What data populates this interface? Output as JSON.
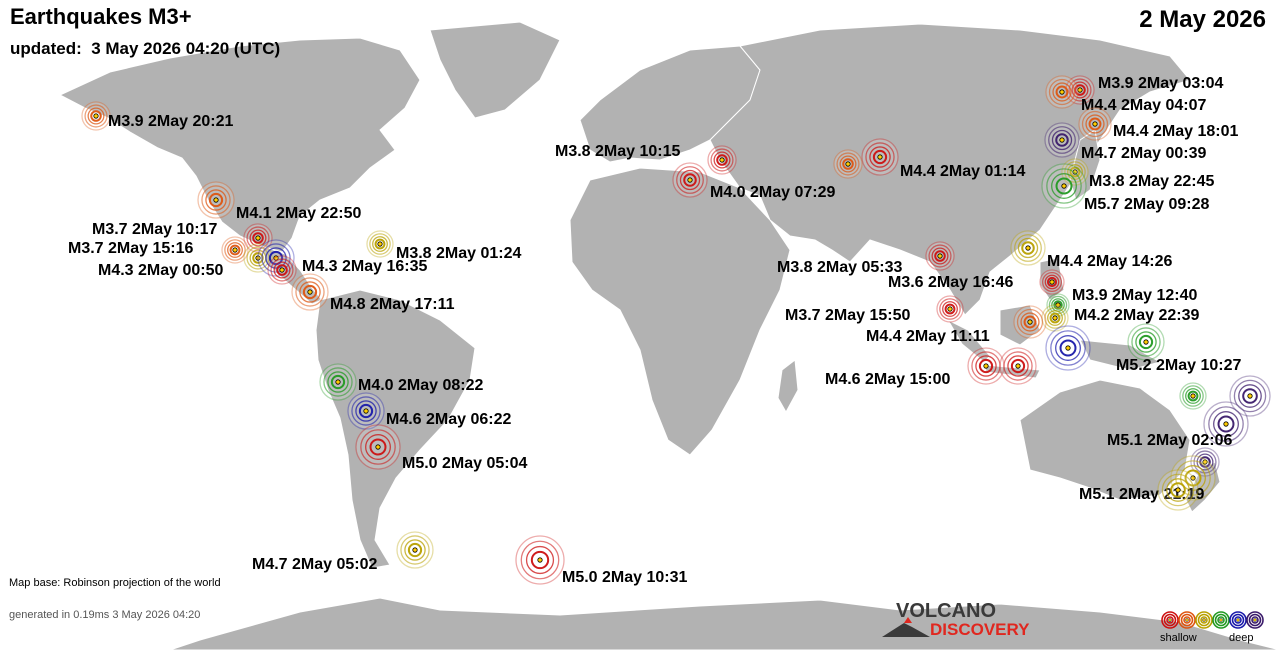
{
  "header": {
    "title": "Earthquakes M3+",
    "updated": "updated:  3 May 2026 04:20 (UTC)",
    "date": "2 May 2026"
  },
  "footer": {
    "map_base": "Map base: Robinson projection of the world",
    "generated": "generated in 0.19ms  3 May 2026 04:20"
  },
  "logo": {
    "line1": "VOLCANO",
    "line2": "DISCOVERY"
  },
  "legend": {
    "shallow": "shallow",
    "deep": "deep",
    "colors": [
      "#cc1111",
      "#dd5511",
      "#b8a000",
      "#229922",
      "#1a1aaa",
      "#3a1a6a"
    ]
  },
  "colors": {
    "land": "#b2b2b2",
    "ocean": "#ffffff",
    "border": "#ffffff"
  },
  "quakes": [
    {
      "label": "M3.9  2May 20:21",
      "color": "#dd5511"
    },
    {
      "label": "M4.1  2May 22:50",
      "color": "#dd5511"
    },
    {
      "label": "M3.7  2May 10:17",
      "color": "#cc1111"
    },
    {
      "label": "M3.7  2May 15:16",
      "color": "#dd5511"
    },
    {
      "label": "M4.3  2May 00:50",
      "color": "#b8a000"
    },
    {
      "label": "M4.3  2May 16:35",
      "color": "#1a1aaa"
    },
    {
      "label": "",
      "color": "#cc1111"
    },
    {
      "label": "M4.8  2May 17:11",
      "color": "#dd5511"
    },
    {
      "label": "M3.8  2May 01:24",
      "color": "#b8a000"
    },
    {
      "label": "M4.0  2May 08:22",
      "color": "#229922"
    },
    {
      "label": "M4.6  2May 06:22",
      "color": "#1a1aaa"
    },
    {
      "label": "M5.0  2May 05:04",
      "color": "#cc1111"
    },
    {
      "label": "M4.7  2May 05:02",
      "color": "#b8a000"
    },
    {
      "label": "M5.0  2May 10:31",
      "color": "#cc1111"
    },
    {
      "label": "M3.8  2May 10:15",
      "color": "#cc1111"
    },
    {
      "label": "M4.0  2May 07:29",
      "color": "#cc1111"
    },
    {
      "label": "",
      "color": "#dd5511"
    },
    {
      "label": "M4.4  2May 01:14",
      "color": "#cc1111"
    },
    {
      "label": "M3.8  2May 05:33",
      "color": "#cc1111"
    },
    {
      "label": "M3.7  2May 15:50",
      "color": "#cc1111"
    },
    {
      "label": "M3.9  2May 03:04",
      "color": "#cc1111"
    },
    {
      "label": "M4.4  2May 04:07",
      "color": "#dd5511"
    },
    {
      "label": "M4.4  2May 18:01",
      "color": "#dd5511"
    },
    {
      "label": "M4.7  2May 00:39",
      "color": "#3a1a6a"
    },
    {
      "label": "M3.8  2May 22:45",
      "color": "#b8a000"
    },
    {
      "label": "M5.7  2May 09:28",
      "color": "#229922"
    },
    {
      "label": "M4.4  2May 14:26",
      "color": "#b8a000"
    },
    {
      "label": "M3.6  2May 16:46",
      "color": "#cc1111"
    },
    {
      "label": "M3.9  2May 12:40",
      "color": "#229922"
    },
    {
      "label": "M4.2  2May 22:39",
      "color": "#b8a000"
    },
    {
      "label": "M4.4  2May 11:11",
      "color": "#dd5511"
    },
    {
      "label": "",
      "color": "#1a1aaa"
    },
    {
      "label": "M5.2  2May 10:27",
      "color": "#229922"
    },
    {
      "label": "M4.6  2May 15:00",
      "color": "#cc1111"
    },
    {
      "label": "",
      "color": "#cc1111"
    },
    {
      "label": "",
      "color": "#229922"
    },
    {
      "label": "",
      "color": "#3a1a6a"
    },
    {
      "label": "M5.1  2May 02:06",
      "color": "#3a1a6a"
    },
    {
      "label": "",
      "color": "#3a1a6a"
    },
    {
      "label": "M5.1  2May 21:19",
      "color": "#b8a000"
    },
    {
      "label": "",
      "color": "#b8a000"
    }
  ]
}
